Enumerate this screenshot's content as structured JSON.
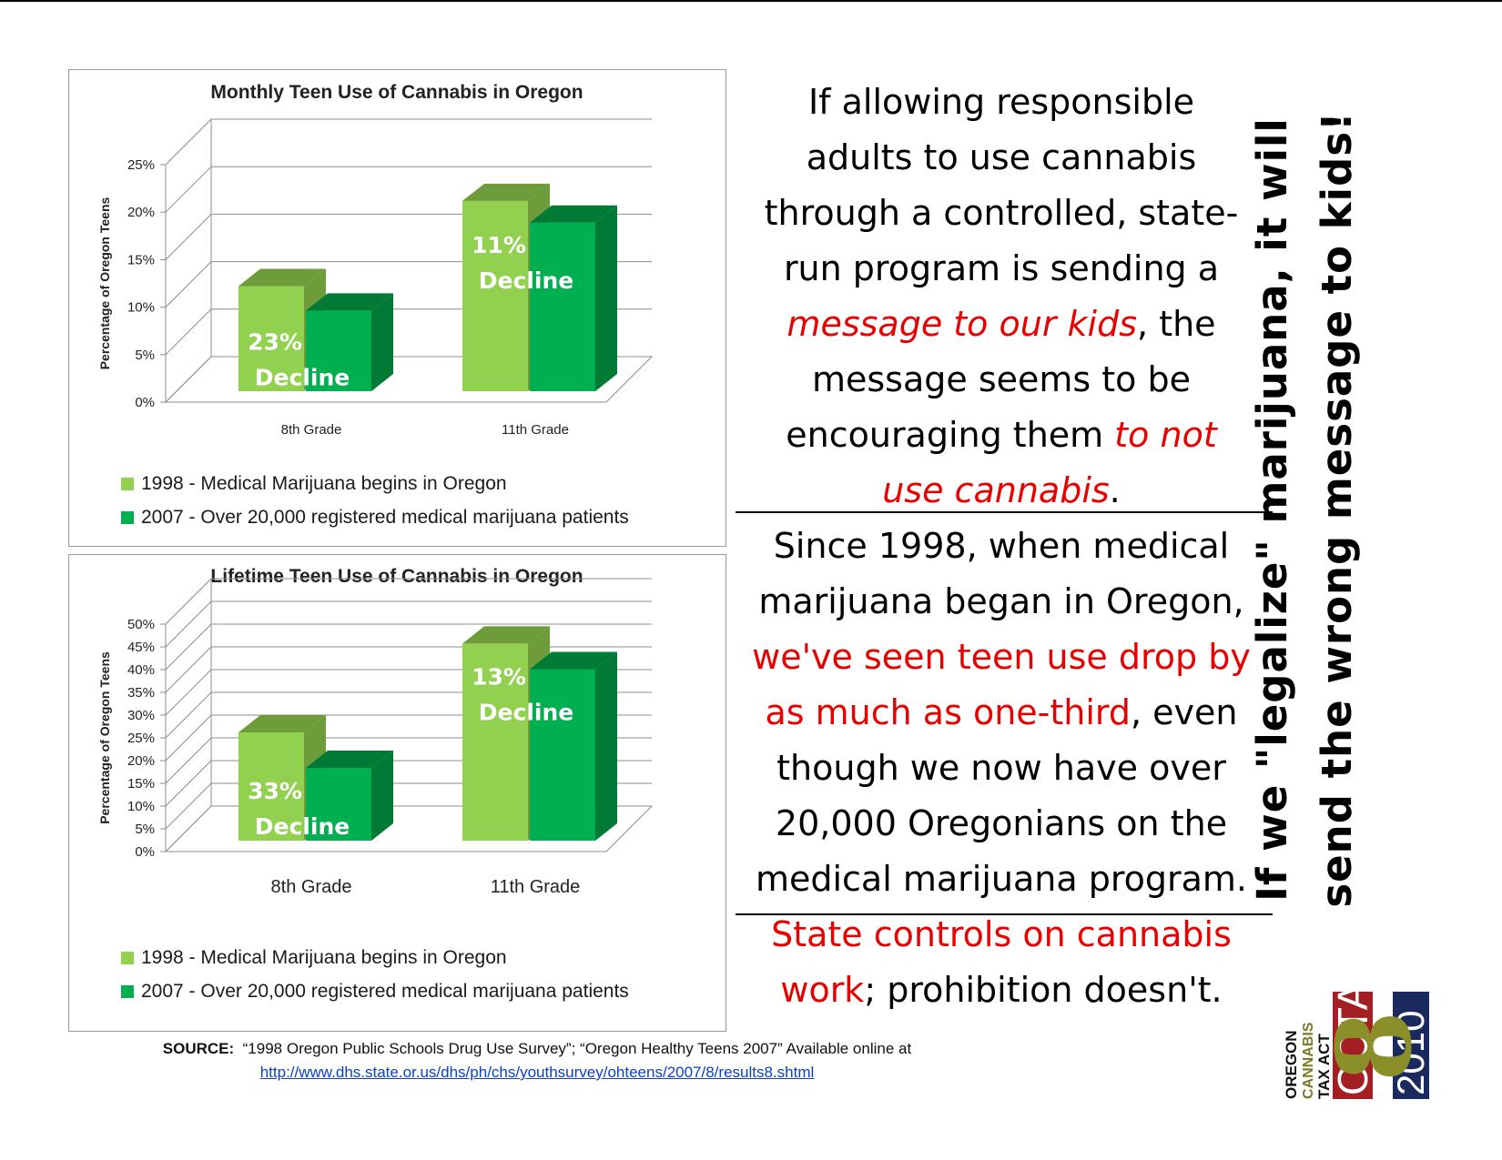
{
  "colors": {
    "series_1998_front": "#92d050",
    "series_1998_side": "#6e9c3a",
    "series_1998_top": "#6e9c3a",
    "series_2007_front": "#00b050",
    "series_2007_side": "#007a35",
    "series_2007_top": "#007a35",
    "red_text": "#e60000",
    "link": "#0b3fc7"
  },
  "chart_data": [
    {
      "type": "bar",
      "title": "Monthly Teen Use of Cannabis in Oregon",
      "ylabel": "Percentage of Oregon Teens",
      "xlabel": "",
      "categories": [
        "8th Grade",
        "11th Grade"
      ],
      "series": [
        {
          "name": "1998 - Medical Marijuana begins in Oregon",
          "values": [
            11.6,
            21.0
          ]
        },
        {
          "name": "2007 - Over 20,000 registered medical marijuana patients",
          "values": [
            8.9,
            18.6
          ]
        }
      ],
      "ylim": [
        0,
        25
      ],
      "yticks": [
        0,
        5,
        10,
        15,
        20,
        25
      ],
      "ytick_labels": [
        "0%",
        "5%",
        "10%",
        "15%",
        "20%",
        "25%"
      ],
      "annotations": [
        {
          "category": "8th Grade",
          "text_1": "23%",
          "text_2": "Decline"
        },
        {
          "category": "11th Grade",
          "text_1": "11%",
          "text_2": "Decline"
        }
      ],
      "grid": true,
      "legend_position": "bottom"
    },
    {
      "type": "bar",
      "title": "Lifetime Teen Use of Cannabis in Oregon",
      "ylabel": "Percentage of Oregon Teens",
      "xlabel": "",
      "categories": [
        "8th Grade",
        "11th Grade"
      ],
      "series": [
        {
          "name": "1998 - Medical Marijuana begins in Oregon",
          "values": [
            25.0,
            45.5
          ]
        },
        {
          "name": "2007 - Over 20,000 registered medical marijuana patients",
          "values": [
            16.8,
            39.6
          ]
        }
      ],
      "ylim": [
        0,
        50
      ],
      "yticks": [
        0,
        5,
        10,
        15,
        20,
        25,
        30,
        35,
        40,
        45,
        50
      ],
      "ytick_labels": [
        "0%",
        "5%",
        "10%",
        "15%",
        "20%",
        "25%",
        "30%",
        "35%",
        "40%",
        "45%",
        "50%"
      ],
      "annotations": [
        {
          "category": "8th Grade",
          "text_1": "33%",
          "text_2": "Decline"
        },
        {
          "category": "11th Grade",
          "text_1": "13%",
          "text_2": "Decline"
        }
      ],
      "grid": true,
      "legend_position": "bottom"
    }
  ],
  "text": {
    "block1": {
      "l1": "If allowing responsible",
      "l2": "adults to use cannabis",
      "l3": "through a controlled, state-",
      "l4": "run program is sending a",
      "l5_red": "message to our kids",
      "l5_rest": ", the",
      "l6": "message seems to be",
      "l7_black": "encouraging them ",
      "l7_red": "to not",
      "l8_red": "use cannabis",
      "l8_rest": "."
    },
    "block2": {
      "l1": "Since 1998, when medical",
      "l2": "marijuana began in Oregon,",
      "l3_red": "we've seen teen use drop by",
      "l4_red": "as much as one-third",
      "l4_rest": ", even",
      "l5": "though we now have over",
      "l6": "20,000 Oregonians on the",
      "l7": "medical marijuana program."
    },
    "block3": {
      "l1_red": "State controls on cannabis",
      "l2_red": "work",
      "l2_rest": "; prohibition doesn't."
    },
    "vertical_slogan": {
      "l1": "If we \"legalize\" marijuana, it will",
      "l2": "send the wrong message to kids!"
    },
    "source": {
      "label": "SOURCE:",
      "text": "“1998 Oregon Public Schools Drug Use Survey”; “Oregon Healthy Teens 2007” Available online at",
      "url": "http://www.dhs.state.or.us/dhs/ph/chs/youthsurvey/ohteens/2007/8/results8.shtml"
    },
    "logo": {
      "l1": "OREGON",
      "l2": "CANNABIS",
      "l3": "TAX ACT",
      "acronym": "OCTA",
      "number": "8",
      "year": "2010"
    }
  }
}
